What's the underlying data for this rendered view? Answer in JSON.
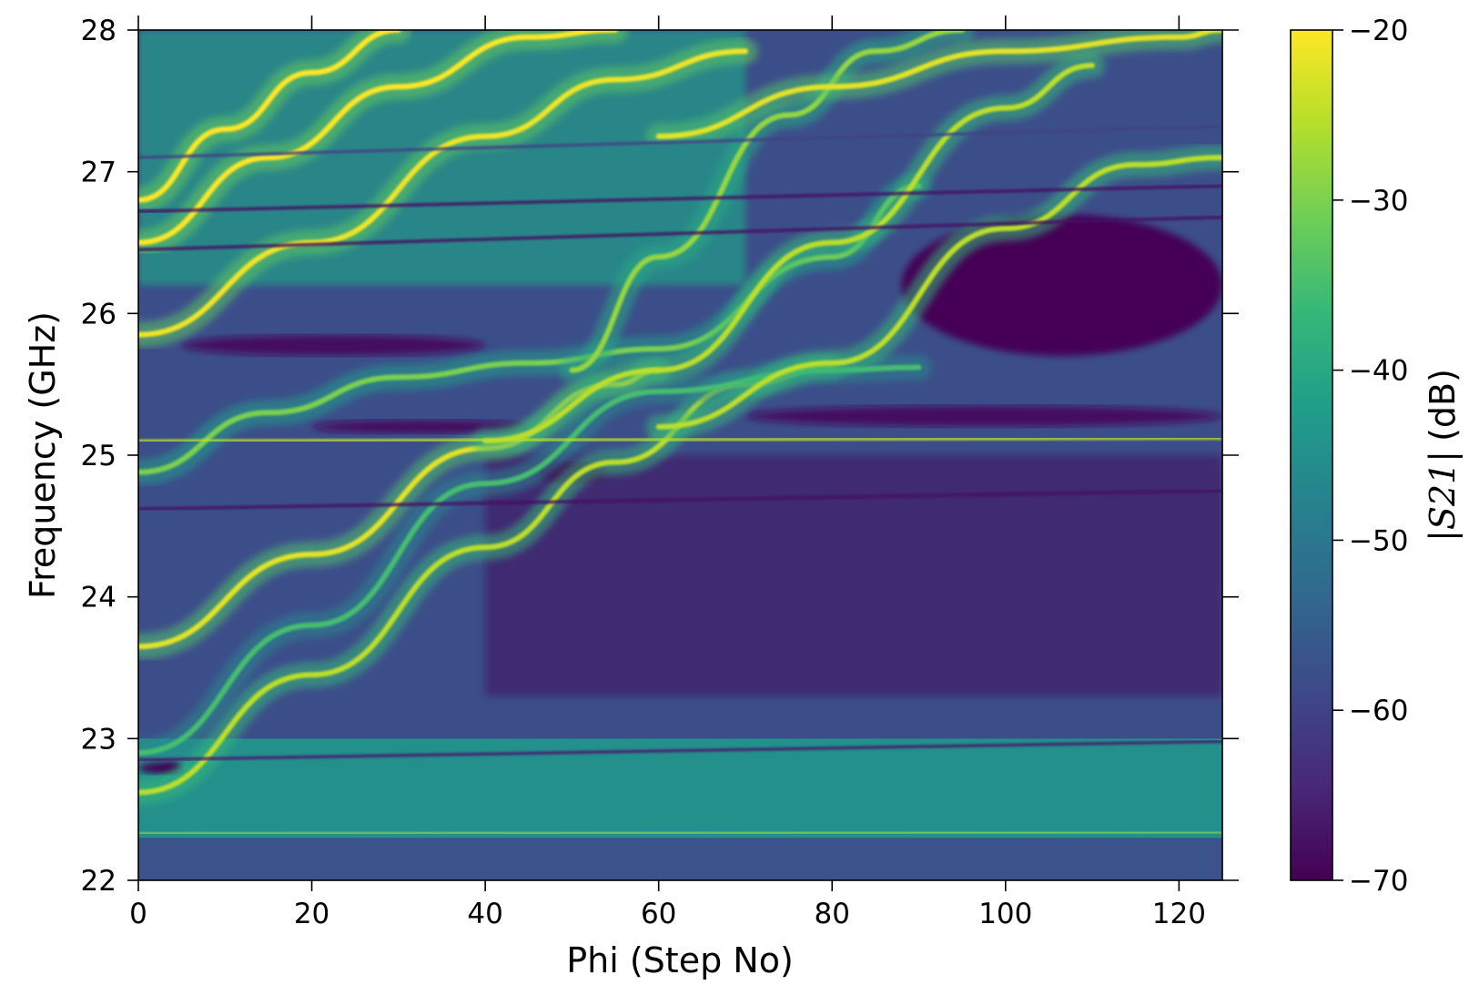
{
  "chart_data": {
    "type": "heatmap",
    "xlabel": "Phi (Step No)",
    "ylabel": "Frequency (GHz)",
    "xlim": [
      0,
      125
    ],
    "ylim": [
      22,
      28
    ],
    "x_ticks": [
      0,
      20,
      40,
      60,
      80,
      100,
      120
    ],
    "x_tick_labels": [
      "0",
      "20",
      "40",
      "60",
      "80",
      "100",
      "120"
    ],
    "y_ticks": [
      22,
      23,
      24,
      25,
      26,
      27,
      28
    ],
    "y_tick_labels": [
      "22",
      "23",
      "24",
      "25",
      "26",
      "27",
      "28"
    ],
    "colormap": "viridis",
    "colorbar": {
      "label_symbol": "|S21|",
      "label_unit": "(dB)",
      "range": [
        -70,
        -20
      ],
      "ticks": [
        -70,
        -60,
        -50,
        -40,
        -30,
        -20
      ],
      "tick_labels": [
        "−70",
        "−60",
        "−50",
        "−40",
        "−30",
        "−20"
      ],
      "position": "right"
    },
    "background_level_db": {
      "low_band_22_to_22.3": -57,
      "band_22.3_to_23": -45,
      "mid_region": -58,
      "upper_right_region": -68
    },
    "horizontal_resonances": [
      {
        "freq_start": 22.33,
        "freq_end": 22.34,
        "level_db": -30
      },
      {
        "freq_start": 22.85,
        "freq_end": 22.98,
        "level_db": -66
      },
      {
        "freq_start": 24.45,
        "freq_end": 24.45,
        "level_db": -66
      },
      {
        "freq_start": 24.62,
        "freq_end": 24.75,
        "level_db": -68
      },
      {
        "freq_start": 25.1,
        "freq_end": 25.12,
        "level_db": -25
      },
      {
        "freq_start": 25.58,
        "freq_end": 25.58,
        "level_db": -32
      },
      {
        "freq_start": 26.45,
        "freq_end": 26.68,
        "level_db": -68
      },
      {
        "freq_start": 26.72,
        "freq_end": 26.9,
        "level_db": -68
      },
      {
        "freq_start": 27.1,
        "freq_end": 27.32,
        "level_db": -60
      }
    ],
    "diagonal_resonances": [
      {
        "x": [
          0,
          20,
          40,
          55,
          70,
          80
        ],
        "y": [
          22.62,
          23.45,
          24.35,
          24.95,
          25.5,
          25.62
        ],
        "level_db": -25
      },
      {
        "x": [
          0,
          20,
          40,
          60,
          80,
          90
        ],
        "y": [
          22.9,
          23.8,
          24.8,
          25.45,
          25.6,
          25.62
        ],
        "level_db": -35
      },
      {
        "x": [
          0,
          20,
          40,
          55,
          60
        ],
        "y": [
          23.65,
          24.3,
          25.05,
          25.5,
          25.6
        ],
        "level_db": -22
      },
      {
        "x": [
          0,
          15,
          30,
          45,
          60,
          80,
          90
        ],
        "y": [
          24.88,
          25.3,
          25.55,
          25.65,
          25.75,
          26.4,
          26.9
        ],
        "level_db": -30
      },
      {
        "x": [
          40,
          60,
          80,
          100,
          110
        ],
        "y": [
          25.1,
          25.6,
          26.5,
          27.45,
          27.75
        ],
        "level_db": -25
      },
      {
        "x": [
          60,
          80,
          100,
          115,
          125
        ],
        "y": [
          25.2,
          25.65,
          26.6,
          27.05,
          27.1
        ],
        "level_db": -25
      },
      {
        "x": [
          50,
          60,
          75,
          85,
          95
        ],
        "y": [
          25.6,
          26.4,
          27.4,
          27.85,
          28.0
        ],
        "level_db": -28
      },
      {
        "x": [
          0,
          20,
          40,
          55,
          70
        ],
        "y": [
          25.85,
          26.5,
          27.25,
          27.65,
          27.85
        ],
        "level_db": -21
      },
      {
        "x": [
          0,
          15,
          30,
          45,
          55
        ],
        "y": [
          26.5,
          27.1,
          27.6,
          27.95,
          28.0
        ],
        "level_db": -20
      },
      {
        "x": [
          0,
          10,
          20,
          30
        ],
        "y": [
          26.8,
          27.3,
          27.7,
          28.0
        ],
        "level_db": -20
      },
      {
        "x": [
          60,
          80,
          100,
          120,
          125
        ],
        "y": [
          27.25,
          27.6,
          27.85,
          27.95,
          28.0
        ],
        "level_db": -22
      }
    ],
    "dark_regions": [
      {
        "x": [
          88,
          125
        ],
        "y": [
          25.7,
          26.7
        ],
        "level_db": -70
      },
      {
        "x": [
          70,
          125
        ],
        "y": [
          25.2,
          25.35
        ],
        "level_db": -68
      },
      {
        "x": [
          5,
          40
        ],
        "y": [
          25.7,
          25.85
        ],
        "level_db": -68
      },
      {
        "x": [
          20,
          45
        ],
        "y": [
          25.15,
          25.25
        ],
        "level_db": -68
      },
      {
        "x": [
          46,
          54
        ],
        "y": [
          24.8,
          24.95
        ],
        "level_db": -70
      },
      {
        "x": [
          0,
          5
        ],
        "y": [
          22.75,
          22.85
        ],
        "level_db": -70
      }
    ]
  }
}
